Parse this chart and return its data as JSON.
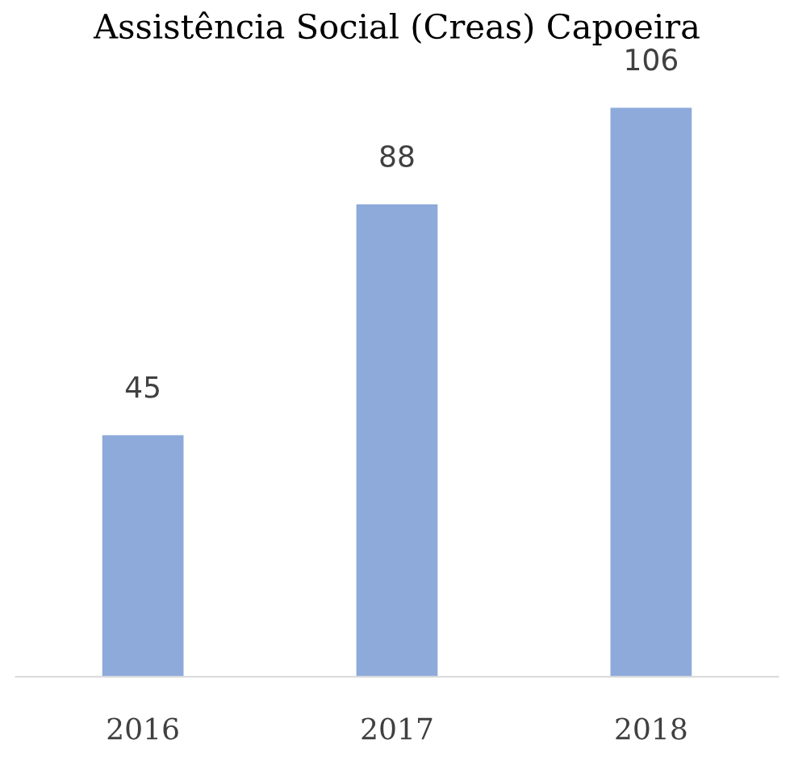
{
  "chart_data": {
    "type": "bar",
    "title": "Assistência Social (Creas) Capoeira",
    "categories": [
      "2016",
      "2017",
      "2018"
    ],
    "values": [
      45,
      88,
      106
    ],
    "color": "#8eaadb",
    "data_labels": true,
    "grid": false,
    "legend": false
  }
}
